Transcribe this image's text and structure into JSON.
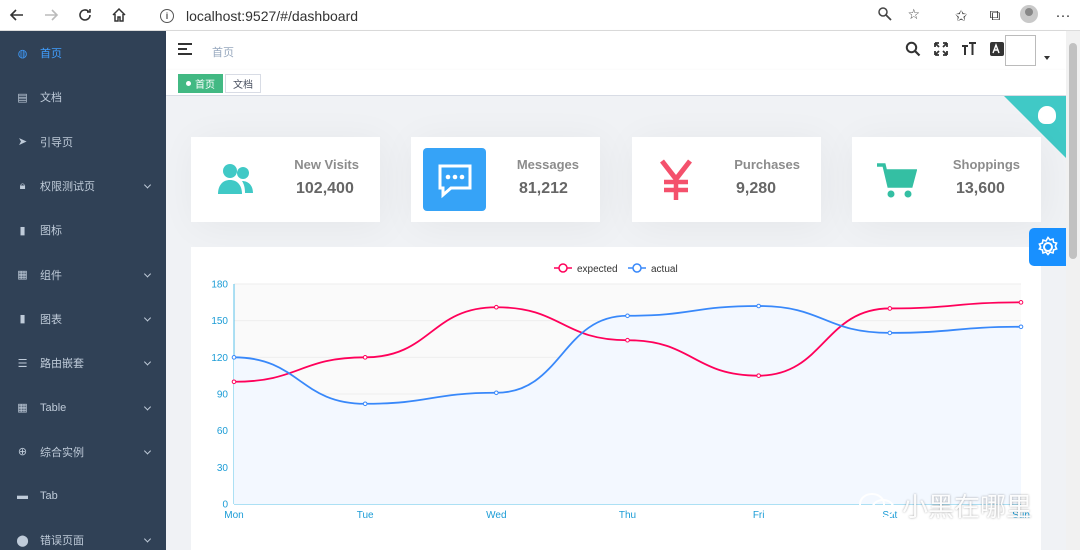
{
  "browser": {
    "url": "localhost:9527/#/dashboard"
  },
  "sidebar": {
    "items": [
      {
        "label": "首页",
        "icon": "dashboard-icon",
        "active": true,
        "has_arrow": false
      },
      {
        "label": "文档",
        "icon": "document-icon",
        "active": false,
        "has_arrow": false
      },
      {
        "label": "引导页",
        "icon": "guide-icon",
        "active": false,
        "has_arrow": false
      },
      {
        "label": "权限测试页",
        "icon": "lock-icon",
        "active": false,
        "has_arrow": true
      },
      {
        "label": "图标",
        "icon": "icon-icon",
        "active": false,
        "has_arrow": false
      },
      {
        "label": "组件",
        "icon": "component-icon",
        "active": false,
        "has_arrow": true
      },
      {
        "label": "图表",
        "icon": "chart-icon",
        "active": false,
        "has_arrow": true
      },
      {
        "label": "路由嵌套",
        "icon": "nested-icon",
        "active": false,
        "has_arrow": true
      },
      {
        "label": "Table",
        "icon": "table-icon",
        "active": false,
        "has_arrow": true
      },
      {
        "label": "综合实例",
        "icon": "example-icon",
        "active": false,
        "has_arrow": true
      },
      {
        "label": "Tab",
        "icon": "tab-icon",
        "active": false,
        "has_arrow": false
      },
      {
        "label": "错误页面",
        "icon": "404-icon",
        "active": false,
        "has_arrow": true
      }
    ]
  },
  "navbar": {
    "breadcrumb": "首页"
  },
  "tags": {
    "items": [
      {
        "label": "首页",
        "active": true
      },
      {
        "label": "文档",
        "active": false
      }
    ]
  },
  "panels": [
    {
      "label": "New Visits",
      "value": "102,400",
      "color": "#40c9c6",
      "icon": "peoples-icon"
    },
    {
      "label": "Messages",
      "value": "81,212",
      "color": "#36a3f7",
      "icon": "message-icon"
    },
    {
      "label": "Purchases",
      "value": "9,280",
      "color": "#f4516c",
      "icon": "money-icon"
    },
    {
      "label": "Shoppings",
      "value": "13,600",
      "color": "#34bfa3",
      "icon": "shopping-icon"
    }
  ],
  "chart_data": {
    "type": "line",
    "categories": [
      "Mon",
      "Tue",
      "Wed",
      "Thu",
      "Fri",
      "Sat",
      "Sun"
    ],
    "series": [
      {
        "name": "expected",
        "values": [
          100,
          120,
          161,
          134,
          105,
          160,
          165
        ],
        "color": "#FF005A"
      },
      {
        "name": "actual",
        "values": [
          120,
          82,
          91,
          154,
          162,
          140,
          145
        ],
        "color": "#3888fa"
      }
    ],
    "ylim": [
      0,
      180
    ],
    "yticks": [
      0,
      30,
      60,
      90,
      120,
      150,
      180
    ],
    "legend": "top-center",
    "grid": true
  },
  "watermark": {
    "text": "小黑在哪里"
  },
  "colors": {
    "sidebar_bg": "#304156",
    "sidebar_text": "#bfcbd9",
    "active": "#409eff",
    "tag_active": "#42b983",
    "settings_btn": "#1890ff"
  }
}
